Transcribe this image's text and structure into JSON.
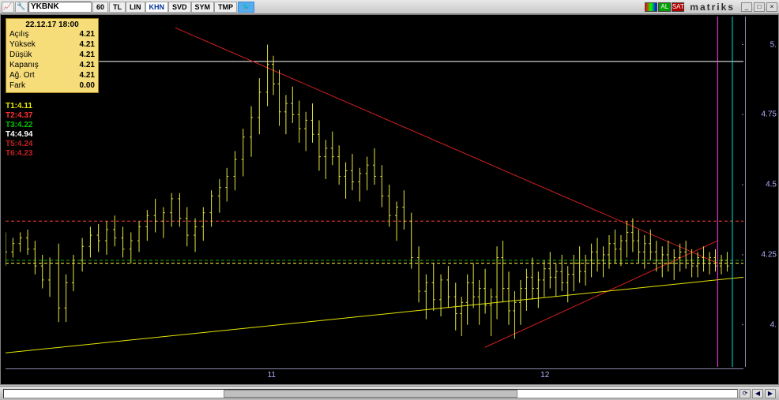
{
  "window": {
    "ticker": "YKBNK",
    "timeframe": "60",
    "toolbar_segments": [
      "TL",
      "LIN",
      "KHN",
      "SVD",
      "SYM",
      "TMP"
    ],
    "active_segment_index": 2,
    "al_label": "AL",
    "sat_label": "SAT",
    "brand": "matriks"
  },
  "ohlc": {
    "datetime": "22.12.17 18:00",
    "rows": [
      {
        "label": "Açılış",
        "value": "4.21"
      },
      {
        "label": "Yüksek",
        "value": "4.21"
      },
      {
        "label": "Düşük",
        "value": "4.21"
      },
      {
        "label": "Kapanış",
        "value": "4.21"
      },
      {
        "label": "Ağ. Ort",
        "value": "4.21"
      },
      {
        "label": "Fark",
        "value": "0.00"
      }
    ]
  },
  "t_levels": [
    {
      "text": "T1:4.11",
      "color": "#e6e600"
    },
    {
      "text": "T2:4.37",
      "color": "#ff3030"
    },
    {
      "text": "T3:4.22",
      "color": "#00c000"
    },
    {
      "text": "T4:4.94",
      "color": "#ffffff"
    },
    {
      "text": "T5:4.24",
      "color": "#c02020"
    },
    {
      "text": "T6:4.23",
      "color": "#c02020"
    }
  ],
  "axes": {
    "y": {
      "min": 3.85,
      "max": 5.1,
      "ticks": [
        {
          "v": 5.0,
          "label": "5."
        },
        {
          "v": 4.75,
          "label": "4.75"
        },
        {
          "v": 4.5,
          "label": "4.5"
        },
        {
          "v": 4.25,
          "label": "4.25"
        },
        {
          "v": 4.0,
          "label": "4."
        }
      ],
      "tick_color": "#b0b0ff"
    },
    "x": {
      "ticks": [
        {
          "pos": 0.355,
          "label": "11"
        },
        {
          "pos": 0.725,
          "label": "12"
        }
      ]
    }
  },
  "horizontal_lines": [
    {
      "v": 4.94,
      "color": "#ffffff",
      "dash": null,
      "width": 1
    },
    {
      "v": 4.37,
      "color": "#ff4040",
      "dash": "4,3",
      "width": 1
    },
    {
      "v": 4.23,
      "color": "#10b010",
      "dash": "4,3",
      "width": 1
    },
    {
      "v": 4.22,
      "color": "#ffff40",
      "dash": "4,3",
      "width": 1
    }
  ],
  "vertical_line": {
    "pos": 0.965,
    "color": "#ff40ff",
    "width": 1
  },
  "right_edge_line": {
    "pos": 0.985,
    "color": "#00e0e0",
    "width": 1
  },
  "trend_lines": [
    {
      "x1": 0.23,
      "y1": 5.06,
      "x2": 0.965,
      "y2": 4.22,
      "color": "#d02020",
      "width": 1
    },
    {
      "x1": 0.65,
      "y1": 3.92,
      "x2": 0.965,
      "y2": 4.3,
      "color": "#d02020",
      "width": 1
    },
    {
      "x1": 0.0,
      "y1": 3.9,
      "x2": 1.0,
      "y2": 4.17,
      "color": "#e6e600",
      "width": 1
    }
  ],
  "chart": {
    "type": "ohlc-bar",
    "bar_color": "#e6e640",
    "background": "#000000",
    "series": [
      {
        "x": 0.0,
        "o": 4.3,
        "h": 4.33,
        "l": 4.21,
        "c": 4.26
      },
      {
        "x": 0.01,
        "o": 4.26,
        "h": 4.31,
        "l": 4.24,
        "c": 4.29
      },
      {
        "x": 0.02,
        "o": 4.29,
        "h": 4.33,
        "l": 4.26,
        "c": 4.31
      },
      {
        "x": 0.03,
        "o": 4.31,
        "h": 4.34,
        "l": 4.25,
        "c": 4.27
      },
      {
        "x": 0.04,
        "o": 4.27,
        "h": 4.3,
        "l": 4.18,
        "c": 4.21
      },
      {
        "x": 0.05,
        "o": 4.21,
        "h": 4.25,
        "l": 4.13,
        "c": 4.16
      },
      {
        "x": 0.06,
        "o": 4.16,
        "h": 4.24,
        "l": 4.1,
        "c": 4.22
      },
      {
        "x": 0.072,
        "o": 4.22,
        "h": 4.29,
        "l": 4.01,
        "c": 4.06
      },
      {
        "x": 0.082,
        "o": 4.06,
        "h": 4.18,
        "l": 4.01,
        "c": 4.15
      },
      {
        "x": 0.092,
        "o": 4.15,
        "h": 4.25,
        "l": 4.12,
        "c": 4.23
      },
      {
        "x": 0.104,
        "o": 4.23,
        "h": 4.31,
        "l": 4.19,
        "c": 4.28
      },
      {
        "x": 0.115,
        "o": 4.28,
        "h": 4.35,
        "l": 4.24,
        "c": 4.32
      },
      {
        "x": 0.126,
        "o": 4.32,
        "h": 4.36,
        "l": 4.26,
        "c": 4.3
      },
      {
        "x": 0.137,
        "o": 4.3,
        "h": 4.37,
        "l": 4.25,
        "c": 4.34
      },
      {
        "x": 0.148,
        "o": 4.34,
        "h": 4.39,
        "l": 4.28,
        "c": 4.31
      },
      {
        "x": 0.159,
        "o": 4.31,
        "h": 4.35,
        "l": 4.24,
        "c": 4.27
      },
      {
        "x": 0.17,
        "o": 4.27,
        "h": 4.33,
        "l": 4.22,
        "c": 4.3
      },
      {
        "x": 0.181,
        "o": 4.3,
        "h": 4.37,
        "l": 4.26,
        "c": 4.35
      },
      {
        "x": 0.192,
        "o": 4.35,
        "h": 4.41,
        "l": 4.3,
        "c": 4.39
      },
      {
        "x": 0.203,
        "o": 4.39,
        "h": 4.45,
        "l": 4.33,
        "c": 4.37
      },
      {
        "x": 0.214,
        "o": 4.37,
        "h": 4.42,
        "l": 4.31,
        "c": 4.4
      },
      {
        "x": 0.225,
        "o": 4.4,
        "h": 4.47,
        "l": 4.35,
        "c": 4.45
      },
      {
        "x": 0.236,
        "o": 4.45,
        "h": 4.47,
        "l": 4.35,
        "c": 4.38
      },
      {
        "x": 0.246,
        "o": 4.38,
        "h": 4.42,
        "l": 4.28,
        "c": 4.32
      },
      {
        "x": 0.257,
        "o": 4.32,
        "h": 4.38,
        "l": 4.26,
        "c": 4.35
      },
      {
        "x": 0.268,
        "o": 4.35,
        "h": 4.42,
        "l": 4.3,
        "c": 4.4
      },
      {
        "x": 0.279,
        "o": 4.4,
        "h": 4.48,
        "l": 4.35,
        "c": 4.46
      },
      {
        "x": 0.29,
        "o": 4.46,
        "h": 4.52,
        "l": 4.4,
        "c": 4.49
      },
      {
        "x": 0.3,
        "o": 4.49,
        "h": 4.56,
        "l": 4.44,
        "c": 4.53
      },
      {
        "x": 0.311,
        "o": 4.53,
        "h": 4.62,
        "l": 4.48,
        "c": 4.59
      },
      {
        "x": 0.322,
        "o": 4.59,
        "h": 4.7,
        "l": 4.53,
        "c": 4.67
      },
      {
        "x": 0.333,
        "o": 4.67,
        "h": 4.78,
        "l": 4.6,
        "c": 4.74
      },
      {
        "x": 0.344,
        "o": 4.74,
        "h": 4.88,
        "l": 4.68,
        "c": 4.83
      },
      {
        "x": 0.355,
        "o": 4.83,
        "h": 5.0,
        "l": 4.78,
        "c": 4.93
      },
      {
        "x": 0.363,
        "o": 4.93,
        "h": 4.96,
        "l": 4.82,
        "c": 4.86
      },
      {
        "x": 0.371,
        "o": 4.86,
        "h": 4.91,
        "l": 4.71,
        "c": 4.76
      },
      {
        "x": 0.38,
        "o": 4.76,
        "h": 4.82,
        "l": 4.68,
        "c": 4.79
      },
      {
        "x": 0.389,
        "o": 4.79,
        "h": 4.85,
        "l": 4.72,
        "c": 4.75
      },
      {
        "x": 0.398,
        "o": 4.75,
        "h": 4.8,
        "l": 4.65,
        "c": 4.7
      },
      {
        "x": 0.407,
        "o": 4.7,
        "h": 4.76,
        "l": 4.62,
        "c": 4.73
      },
      {
        "x": 0.416,
        "o": 4.73,
        "h": 4.79,
        "l": 4.65,
        "c": 4.68
      },
      {
        "x": 0.425,
        "o": 4.68,
        "h": 4.73,
        "l": 4.55,
        "c": 4.6
      },
      {
        "x": 0.434,
        "o": 4.6,
        "h": 4.66,
        "l": 4.52,
        "c": 4.63
      },
      {
        "x": 0.443,
        "o": 4.63,
        "h": 4.69,
        "l": 4.57,
        "c": 4.6
      },
      {
        "x": 0.452,
        "o": 4.6,
        "h": 4.64,
        "l": 4.5,
        "c": 4.53
      },
      {
        "x": 0.461,
        "o": 4.53,
        "h": 4.58,
        "l": 4.45,
        "c": 4.55
      },
      {
        "x": 0.47,
        "o": 4.55,
        "h": 4.61,
        "l": 4.48,
        "c": 4.51
      },
      {
        "x": 0.48,
        "o": 4.51,
        "h": 4.56,
        "l": 4.44,
        "c": 4.54
      },
      {
        "x": 0.49,
        "o": 4.54,
        "h": 4.6,
        "l": 4.48,
        "c": 4.57
      },
      {
        "x": 0.5,
        "o": 4.57,
        "h": 4.63,
        "l": 4.5,
        "c": 4.53
      },
      {
        "x": 0.51,
        "o": 4.53,
        "h": 4.57,
        "l": 4.42,
        "c": 4.46
      },
      {
        "x": 0.52,
        "o": 4.46,
        "h": 4.5,
        "l": 4.35,
        "c": 4.39
      },
      {
        "x": 0.53,
        "o": 4.39,
        "h": 4.44,
        "l": 4.3,
        "c": 4.42
      },
      {
        "x": 0.54,
        "o": 4.42,
        "h": 4.48,
        "l": 4.34,
        "c": 4.37
      },
      {
        "x": 0.55,
        "o": 4.37,
        "h": 4.4,
        "l": 4.2,
        "c": 4.24
      },
      {
        "x": 0.56,
        "o": 4.24,
        "h": 4.28,
        "l": 4.08,
        "c": 4.12
      },
      {
        "x": 0.57,
        "o": 4.12,
        "h": 4.18,
        "l": 4.02,
        "c": 4.15
      },
      {
        "x": 0.58,
        "o": 4.15,
        "h": 4.22,
        "l": 4.05,
        "c": 4.09
      },
      {
        "x": 0.59,
        "o": 4.09,
        "h": 4.18,
        "l": 4.03,
        "c": 4.16
      },
      {
        "x": 0.6,
        "o": 4.16,
        "h": 4.21,
        "l": 4.06,
        "c": 4.1
      },
      {
        "x": 0.61,
        "o": 4.1,
        "h": 4.15,
        "l": 3.98,
        "c": 4.04
      },
      {
        "x": 0.618,
        "o": 4.04,
        "h": 4.1,
        "l": 3.96,
        "c": 4.08
      },
      {
        "x": 0.626,
        "o": 4.08,
        "h": 4.18,
        "l": 4.0,
        "c": 4.15
      },
      {
        "x": 0.634,
        "o": 4.15,
        "h": 4.22,
        "l": 4.06,
        "c": 4.1
      },
      {
        "x": 0.642,
        "o": 4.1,
        "h": 4.16,
        "l": 4.0,
        "c": 4.13
      },
      {
        "x": 0.65,
        "o": 4.13,
        "h": 4.2,
        "l": 4.04,
        "c": 4.07
      },
      {
        "x": 0.658,
        "o": 4.07,
        "h": 4.13,
        "l": 3.96,
        "c": 4.1
      },
      {
        "x": 0.666,
        "o": 4.1,
        "h": 4.28,
        "l": 4.02,
        "c": 4.24
      },
      {
        "x": 0.674,
        "o": 4.24,
        "h": 4.3,
        "l": 4.08,
        "c": 4.13
      },
      {
        "x": 0.682,
        "o": 4.13,
        "h": 4.19,
        "l": 4.0,
        "c": 4.05
      },
      {
        "x": 0.69,
        "o": 4.05,
        "h": 4.12,
        "l": 3.95,
        "c": 4.08
      },
      {
        "x": 0.698,
        "o": 4.08,
        "h": 4.16,
        "l": 4.0,
        "c": 4.13
      },
      {
        "x": 0.706,
        "o": 4.13,
        "h": 4.2,
        "l": 4.05,
        "c": 4.17
      },
      {
        "x": 0.714,
        "o": 4.17,
        "h": 4.24,
        "l": 4.09,
        "c": 4.13
      },
      {
        "x": 0.722,
        "o": 4.13,
        "h": 4.19,
        "l": 4.06,
        "c": 4.16
      },
      {
        "x": 0.73,
        "o": 4.16,
        "h": 4.23,
        "l": 4.1,
        "c": 4.2
      },
      {
        "x": 0.738,
        "o": 4.2,
        "h": 4.26,
        "l": 4.13,
        "c": 4.17
      },
      {
        "x": 0.746,
        "o": 4.17,
        "h": 4.22,
        "l": 4.1,
        "c": 4.19
      },
      {
        "x": 0.754,
        "o": 4.19,
        "h": 4.25,
        "l": 4.12,
        "c": 4.15
      },
      {
        "x": 0.762,
        "o": 4.15,
        "h": 4.21,
        "l": 4.08,
        "c": 4.18
      },
      {
        "x": 0.77,
        "o": 4.18,
        "h": 4.25,
        "l": 4.12,
        "c": 4.22
      },
      {
        "x": 0.778,
        "o": 4.22,
        "h": 4.28,
        "l": 4.15,
        "c": 4.19
      },
      {
        "x": 0.786,
        "o": 4.19,
        "h": 4.25,
        "l": 4.14,
        "c": 4.23
      },
      {
        "x": 0.794,
        "o": 4.23,
        "h": 4.29,
        "l": 4.17,
        "c": 4.26
      },
      {
        "x": 0.802,
        "o": 4.26,
        "h": 4.31,
        "l": 4.19,
        "c": 4.23
      },
      {
        "x": 0.81,
        "o": 4.23,
        "h": 4.28,
        "l": 4.17,
        "c": 4.25
      },
      {
        "x": 0.818,
        "o": 4.25,
        "h": 4.32,
        "l": 4.2,
        "c": 4.29
      },
      {
        "x": 0.826,
        "o": 4.29,
        "h": 4.34,
        "l": 4.22,
        "c": 4.27
      },
      {
        "x": 0.834,
        "o": 4.27,
        "h": 4.32,
        "l": 4.21,
        "c": 4.3
      },
      {
        "x": 0.842,
        "o": 4.3,
        "h": 4.37,
        "l": 4.24,
        "c": 4.33
      },
      {
        "x": 0.85,
        "o": 4.33,
        "h": 4.38,
        "l": 4.26,
        "c": 4.3
      },
      {
        "x": 0.858,
        "o": 4.3,
        "h": 4.34,
        "l": 4.22,
        "c": 4.26
      },
      {
        "x": 0.866,
        "o": 4.26,
        "h": 4.32,
        "l": 4.2,
        "c": 4.29
      },
      {
        "x": 0.874,
        "o": 4.29,
        "h": 4.34,
        "l": 4.23,
        "c": 4.26
      },
      {
        "x": 0.882,
        "o": 4.26,
        "h": 4.3,
        "l": 4.19,
        "c": 4.23
      },
      {
        "x": 0.89,
        "o": 4.23,
        "h": 4.28,
        "l": 4.17,
        "c": 4.25
      },
      {
        "x": 0.898,
        "o": 4.25,
        "h": 4.3,
        "l": 4.19,
        "c": 4.22
      },
      {
        "x": 0.906,
        "o": 4.22,
        "h": 4.27,
        "l": 4.16,
        "c": 4.24
      },
      {
        "x": 0.914,
        "o": 4.24,
        "h": 4.29,
        "l": 4.19,
        "c": 4.26
      },
      {
        "x": 0.922,
        "o": 4.26,
        "h": 4.3,
        "l": 4.2,
        "c": 4.23
      },
      {
        "x": 0.93,
        "o": 4.23,
        "h": 4.27,
        "l": 4.17,
        "c": 4.21
      },
      {
        "x": 0.938,
        "o": 4.21,
        "h": 4.26,
        "l": 4.17,
        "c": 4.24
      },
      {
        "x": 0.946,
        "o": 4.24,
        "h": 4.28,
        "l": 4.19,
        "c": 4.22
      },
      {
        "x": 0.954,
        "o": 4.22,
        "h": 4.26,
        "l": 4.18,
        "c": 4.24
      },
      {
        "x": 0.962,
        "o": 4.24,
        "h": 4.27,
        "l": 4.19,
        "c": 4.21
      },
      {
        "x": 0.97,
        "o": 4.21,
        "h": 4.25,
        "l": 4.18,
        "c": 4.23
      },
      {
        "x": 0.978,
        "o": 4.23,
        "h": 4.26,
        "l": 4.19,
        "c": 4.21
      }
    ]
  }
}
